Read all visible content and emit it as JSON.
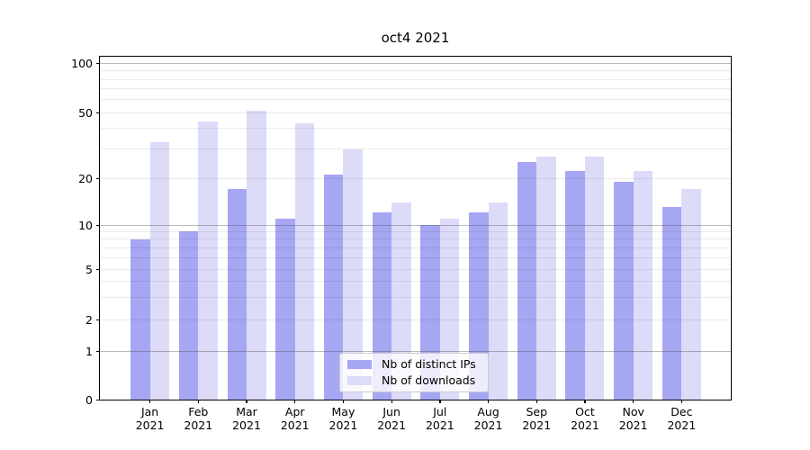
{
  "chart_data": {
    "type": "bar",
    "title": "oct4 2021",
    "categories": [
      "Jan",
      "Feb",
      "Mar",
      "Apr",
      "May",
      "Jun",
      "Jul",
      "Aug",
      "Sep",
      "Oct",
      "Nov",
      "Dec"
    ],
    "year_label": "2021",
    "series": [
      {
        "name": "Nb of distinct IPs",
        "color": "#a6a6f3",
        "values": [
          8,
          9,
          17,
          11,
          21,
          12,
          10,
          12,
          25,
          22,
          19,
          13
        ]
      },
      {
        "name": "Nb of downloads",
        "color": "#dcdcf8",
        "values": [
          33,
          44,
          51,
          43,
          30,
          14,
          11,
          14,
          27,
          27,
          22,
          17
        ]
      }
    ],
    "y_axis": {
      "scale": "asinh-log",
      "ylim": [
        0,
        110
      ],
      "tick_labels": [
        "0",
        "1",
        "2",
        "5",
        "10",
        "20",
        "50",
        "100"
      ],
      "tick_values": [
        0,
        1,
        2,
        5,
        10,
        20,
        50,
        100
      ],
      "major_gridlines": [
        1,
        10,
        100
      ],
      "minor_gridlines": [
        2,
        3,
        4,
        5,
        6,
        7,
        8,
        9,
        20,
        30,
        40,
        50,
        60,
        70,
        80,
        90
      ]
    },
    "legend": {
      "position": "lower center",
      "labels": [
        "Nb of distinct IPs",
        "Nb of downloads"
      ]
    },
    "grid": true
  }
}
